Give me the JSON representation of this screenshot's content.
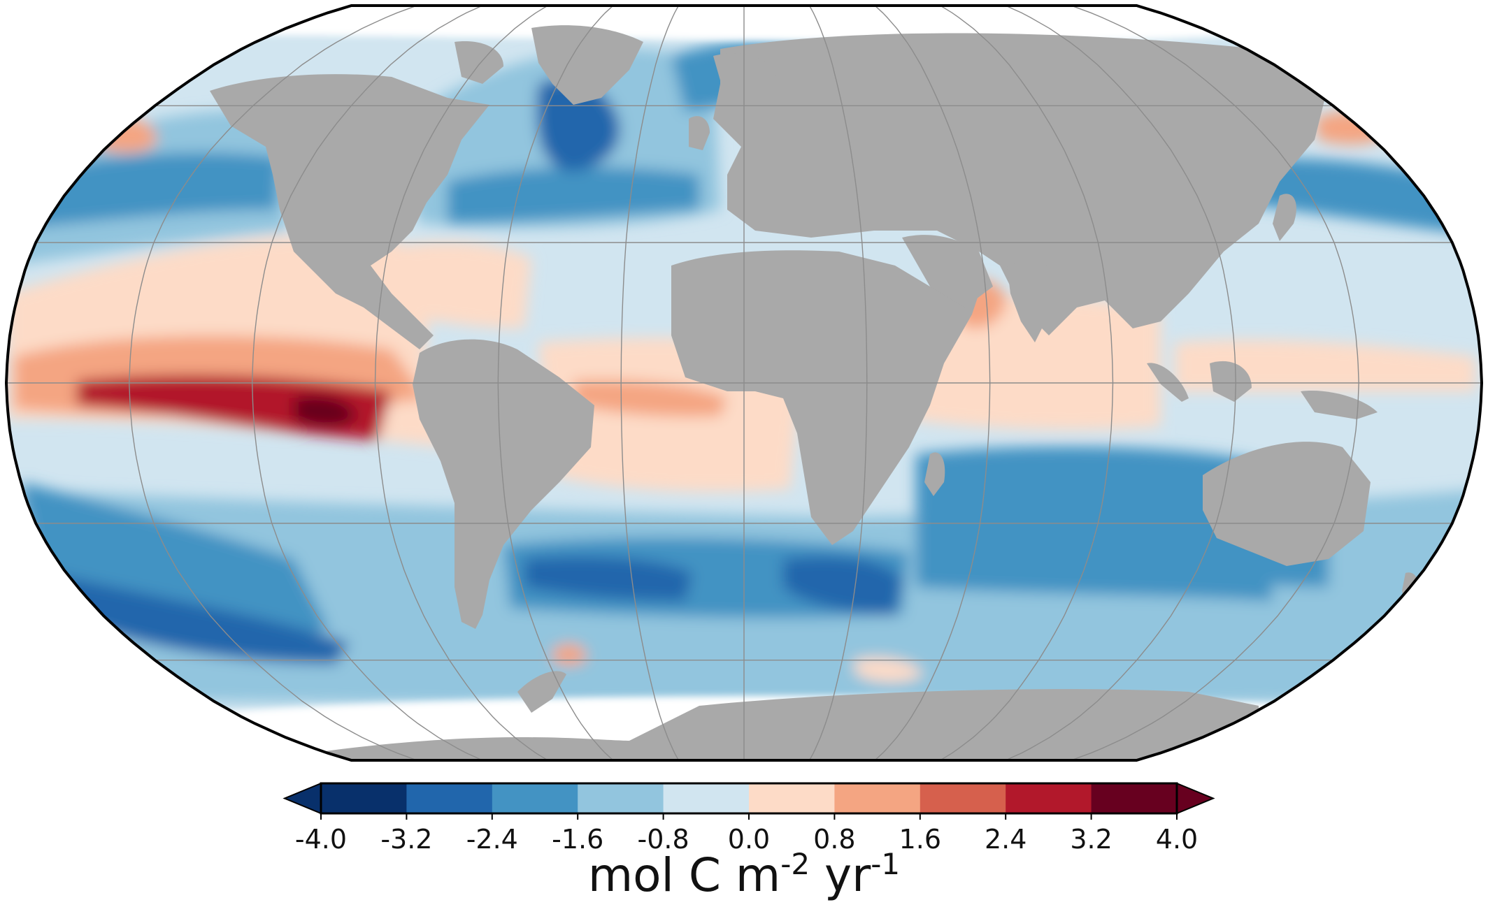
{
  "map": {
    "projection": "Robinson",
    "gridlines": true,
    "land_color": "#a9a9a9",
    "sea_ice_color": "#ffffff",
    "graticule_color": "#8c8c8c"
  },
  "colorbar": {
    "ticks": [
      "-4.0",
      "-3.2",
      "-2.4",
      "-1.6",
      "-0.8",
      "0.0",
      "0.8",
      "1.6",
      "2.4",
      "3.2",
      "4.0"
    ],
    "colors": [
      "#08306b",
      "#2166ac",
      "#4393c3",
      "#92c5de",
      "#d1e5f0",
      "#fddbc7",
      "#f4a582",
      "#d6604d",
      "#b2182b",
      "#67001f"
    ],
    "extend": "both",
    "units": "mol C m",
    "units_sup1": "-2",
    "units_mid": " yr",
    "units_sup2": "-1"
  }
}
